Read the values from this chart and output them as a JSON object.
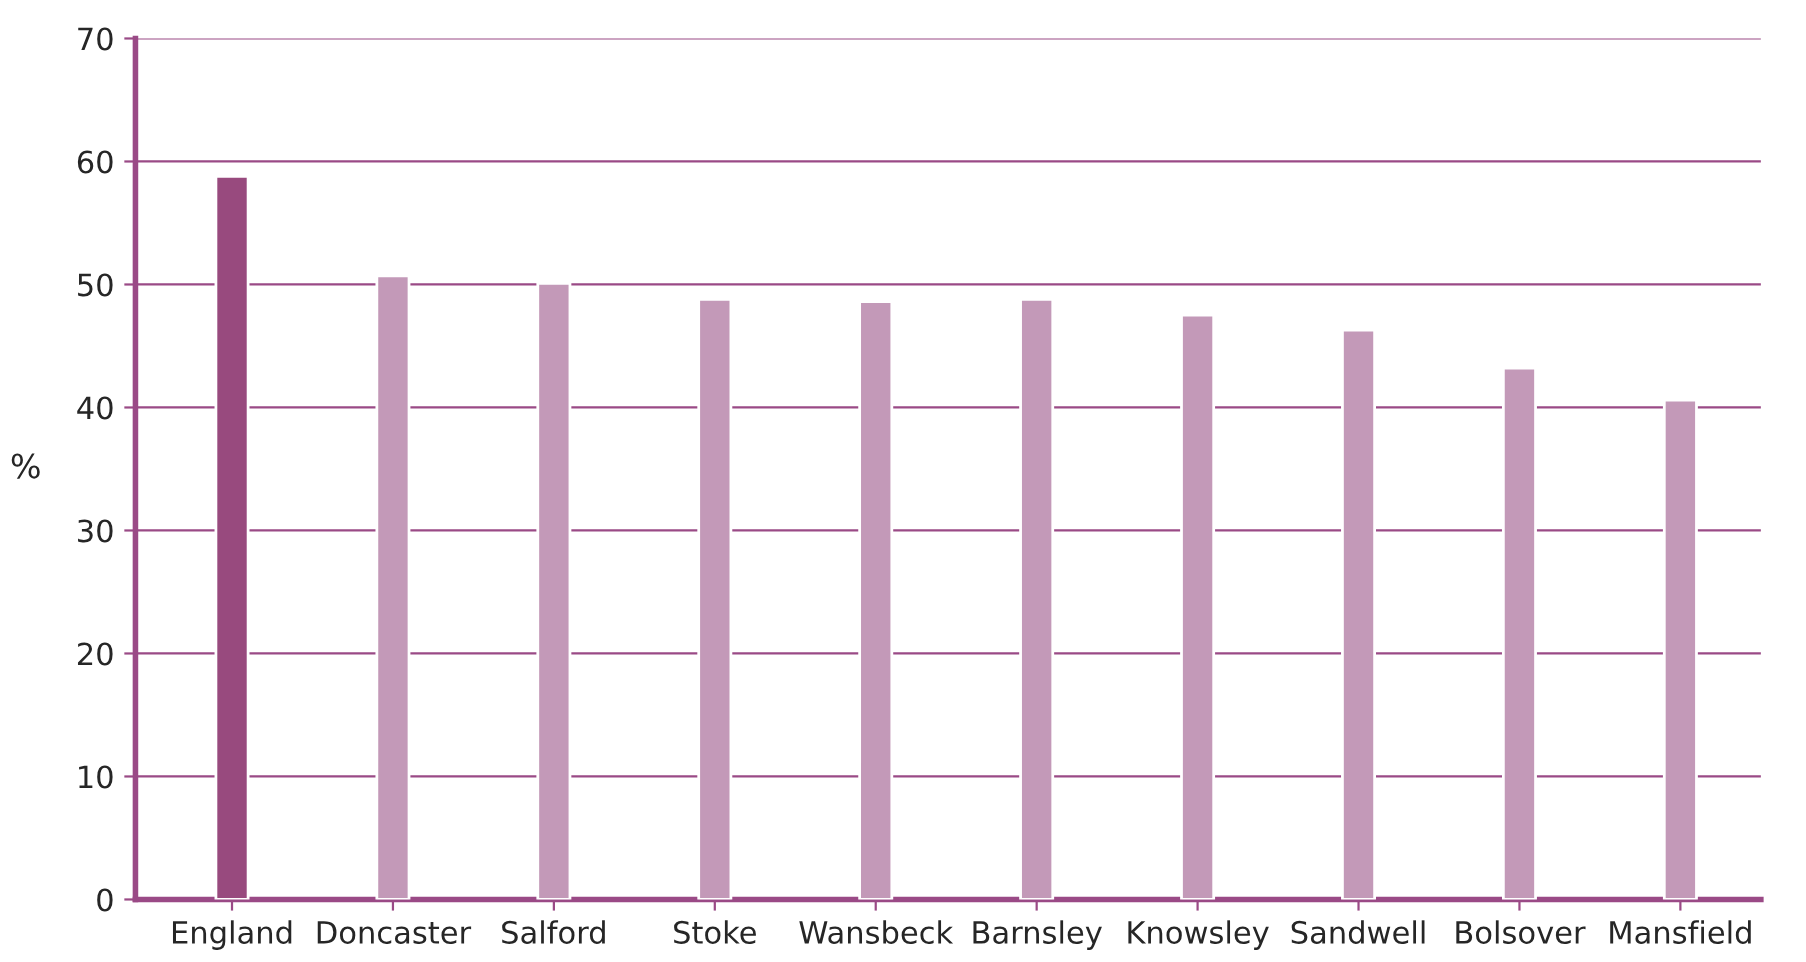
{
  "chart_data": {
    "type": "bar",
    "ylabel": "%",
    "categories": [
      "England",
      "Doncaster",
      "Salford",
      "Stoke",
      "Wansbeck",
      "Barnsley",
      "Knowsley",
      "Sandwell",
      "Bolsover",
      "Mansfield"
    ],
    "values": [
      58.8,
      50.7,
      50.1,
      48.8,
      48.6,
      48.8,
      47.5,
      46.3,
      43.2,
      40.6
    ],
    "colors": [
      "#984a7e",
      "#c399b8",
      "#c399b8",
      "#c399b8",
      "#c399b8",
      "#c399b8",
      "#c399b8",
      "#c399b8",
      "#c399b8",
      "#c399b8"
    ],
    "ylim": [
      0,
      70
    ],
    "yticks": [
      0,
      10,
      20,
      30,
      40,
      50,
      60,
      70
    ],
    "grid": "y"
  }
}
